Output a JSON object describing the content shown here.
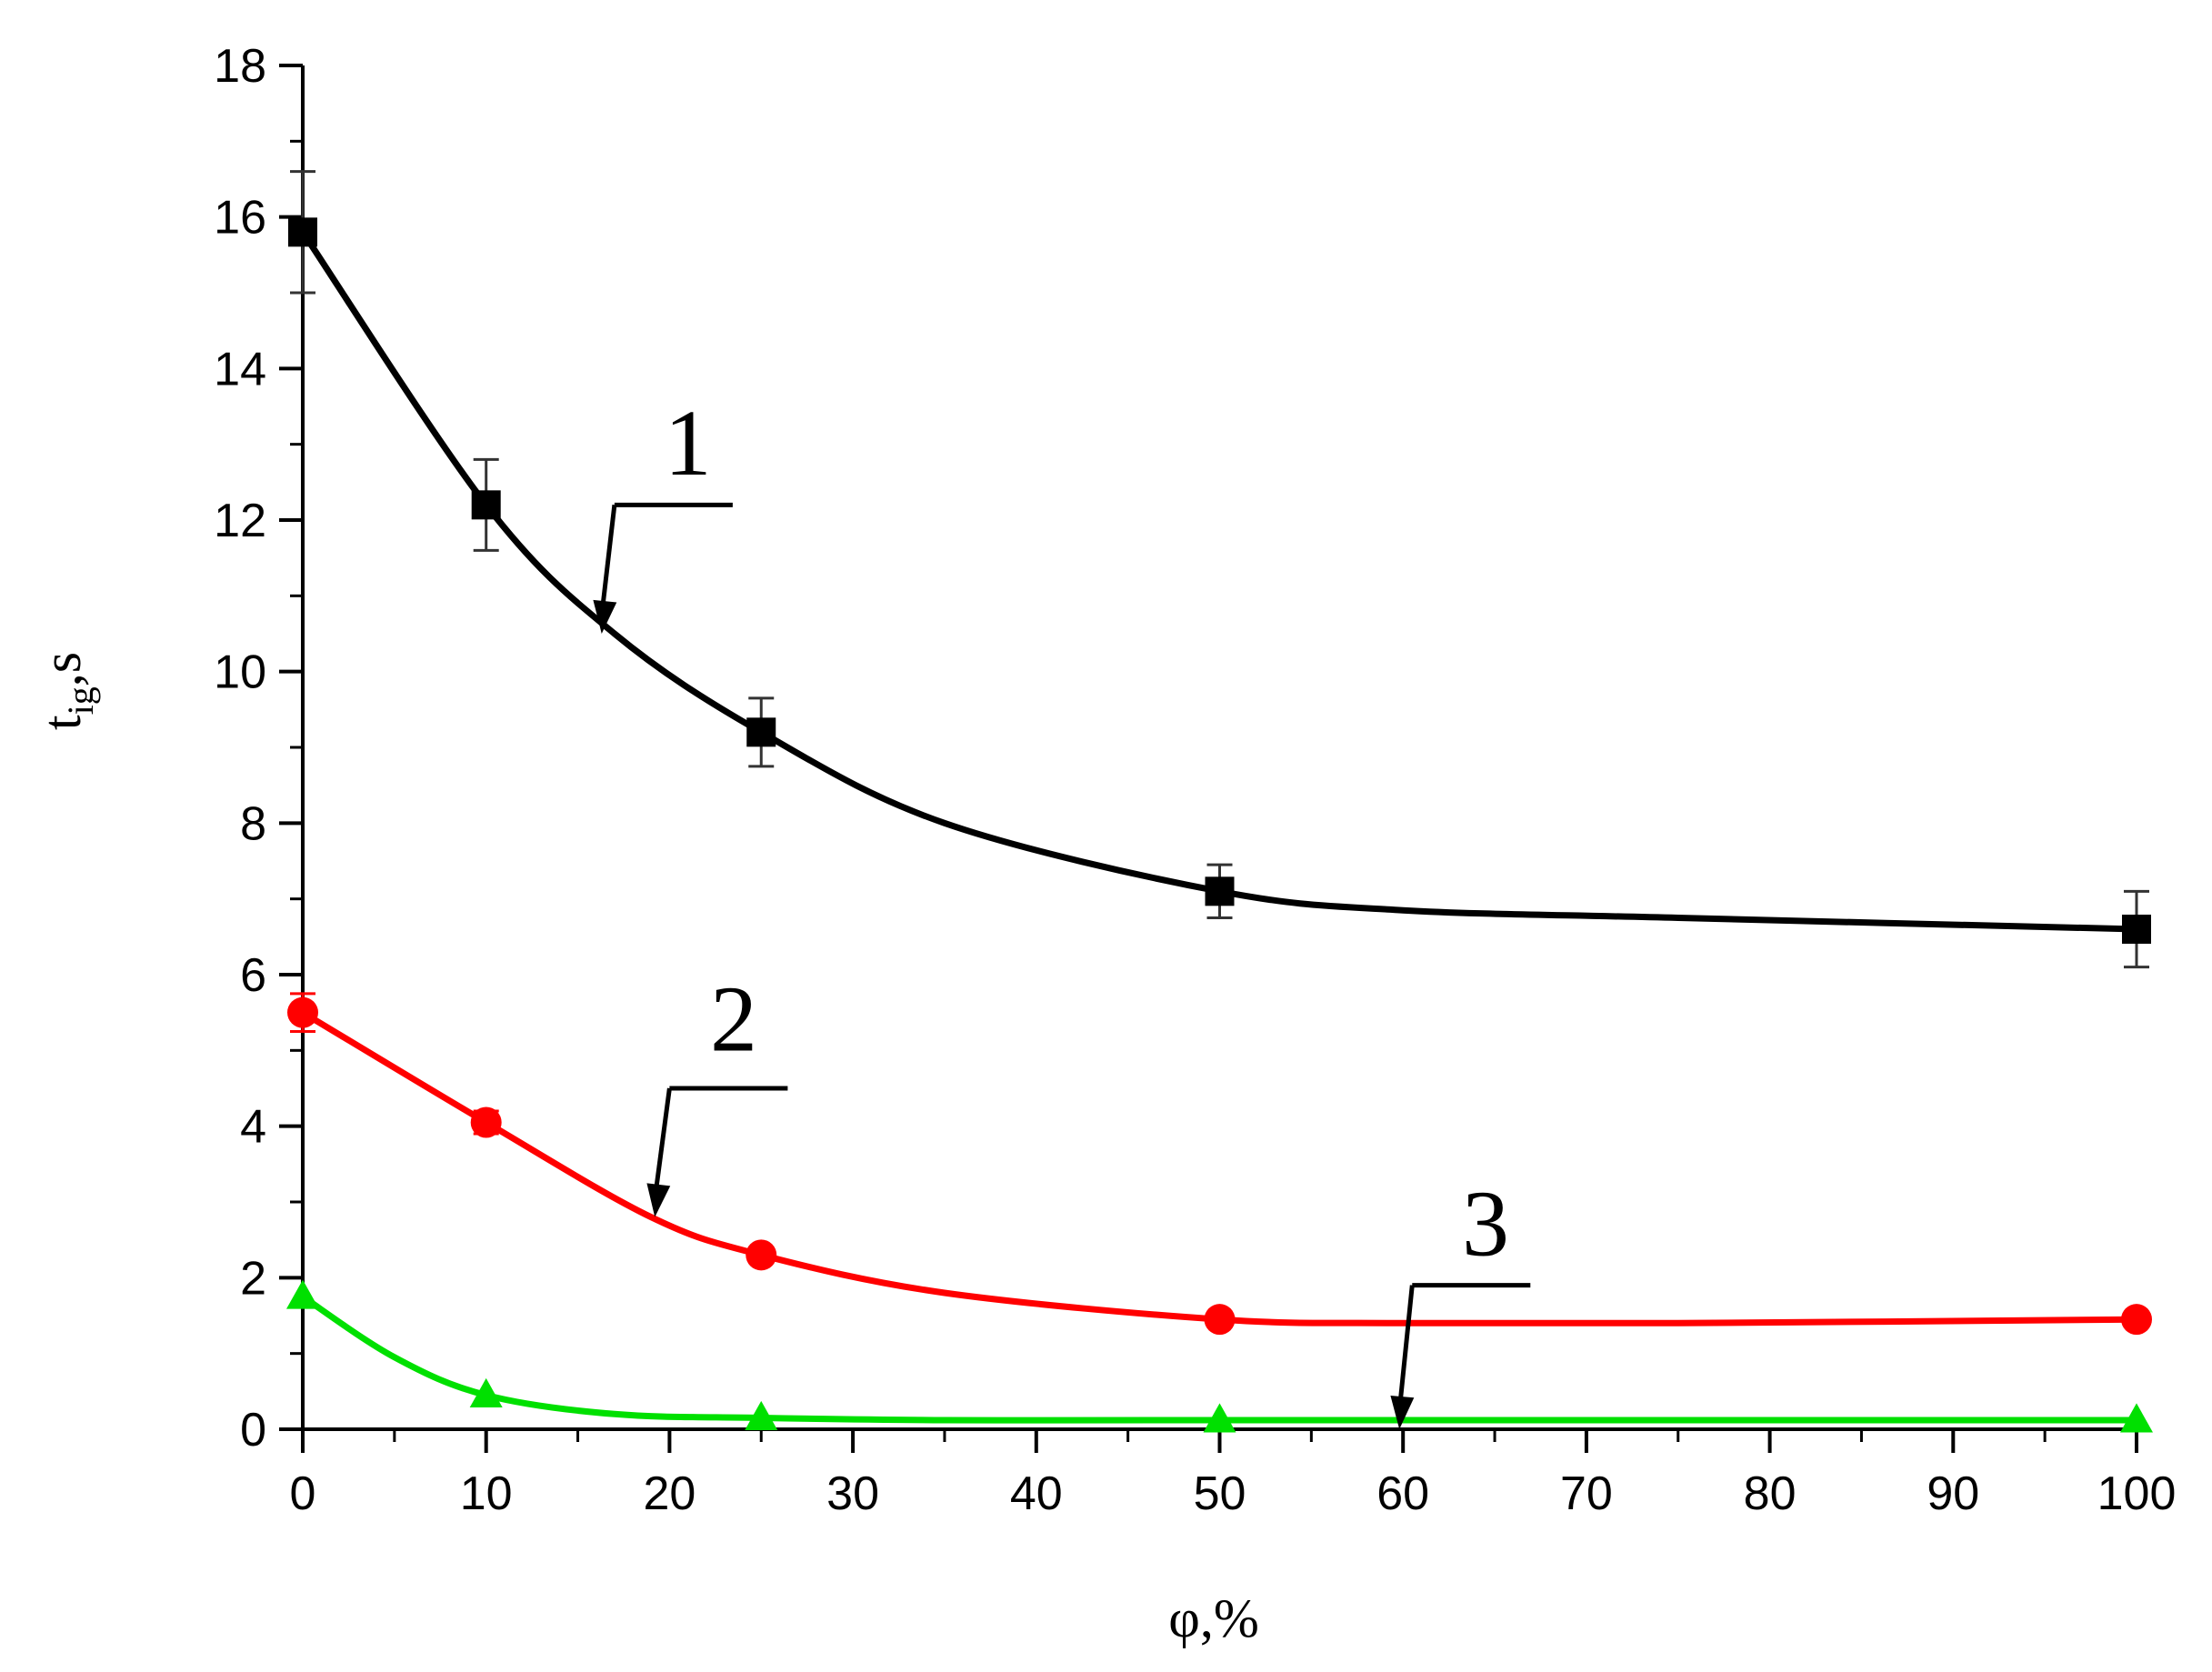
{
  "chart_data": {
    "type": "line",
    "xlabel": "φ,%",
    "ylabel": {
      "main": "t",
      "sub": "ig",
      "unit": ",s"
    },
    "xlim": [
      0,
      100
    ],
    "ylim": [
      0,
      18
    ],
    "xticks": [
      0,
      10,
      20,
      30,
      40,
      50,
      60,
      70,
      80,
      90,
      100
    ],
    "yticks": [
      0,
      2,
      4,
      6,
      8,
      10,
      12,
      14,
      16,
      18
    ],
    "grid": false,
    "legend": "none",
    "series": [
      {
        "label": "1",
        "color": "#000000",
        "marker": "square",
        "x": [
          0,
          10,
          25,
          50,
          100
        ],
        "y": [
          15.8,
          12.2,
          9.2,
          7.1,
          6.6
        ],
        "yerr": [
          0.8,
          0.6,
          0.45,
          0.35,
          0.5
        ],
        "curve": [
          [
            0,
            15.8
          ],
          [
            10,
            12.2
          ],
          [
            17,
            10.5
          ],
          [
            25,
            9.2
          ],
          [
            35,
            8.0
          ],
          [
            50,
            7.1
          ],
          [
            60,
            6.85
          ],
          [
            75,
            6.75
          ],
          [
            100,
            6.6
          ]
        ],
        "pointer": {
          "from": [
            17,
            12.2
          ],
          "to": [
            16.3,
            10.5
          ]
        },
        "label_at": [
          21,
          12.6
        ]
      },
      {
        "label": "2",
        "color": "#ff0000",
        "marker": "circle",
        "x": [
          0,
          10,
          25,
          50,
          100
        ],
        "y": [
          5.5,
          4.05,
          2.3,
          1.45,
          1.45
        ],
        "yerr": [
          0.25,
          0.15,
          0,
          0,
          0
        ],
        "curve": [
          [
            0,
            5.5
          ],
          [
            10,
            4.05
          ],
          [
            19,
            2.8
          ],
          [
            25,
            2.3
          ],
          [
            35,
            1.8
          ],
          [
            50,
            1.45
          ],
          [
            60,
            1.4
          ],
          [
            75,
            1.4
          ],
          [
            100,
            1.45
          ]
        ],
        "pointer": {
          "from": [
            20,
            4.5
          ],
          "to": [
            19.2,
            2.8
          ]
        },
        "label_at": [
          23.5,
          5.0
        ]
      },
      {
        "label": "3",
        "color": "#00e000",
        "marker": "triangle",
        "x": [
          0,
          10,
          25,
          50,
          100
        ],
        "y": [
          1.75,
          0.45,
          0.15,
          0.12,
          0.12
        ],
        "yerr": [
          0,
          0,
          0,
          0,
          0
        ],
        "curve": [
          [
            0,
            1.75
          ],
          [
            5,
            0.95
          ],
          [
            10,
            0.45
          ],
          [
            17,
            0.2
          ],
          [
            25,
            0.15
          ],
          [
            35,
            0.12
          ],
          [
            50,
            0.12
          ],
          [
            100,
            0.12
          ]
        ],
        "pointer": {
          "from": [
            60.5,
            1.9
          ],
          "to": [
            59.8,
            0.0
          ]
        },
        "label_at": [
          64.5,
          2.3
        ]
      }
    ]
  }
}
